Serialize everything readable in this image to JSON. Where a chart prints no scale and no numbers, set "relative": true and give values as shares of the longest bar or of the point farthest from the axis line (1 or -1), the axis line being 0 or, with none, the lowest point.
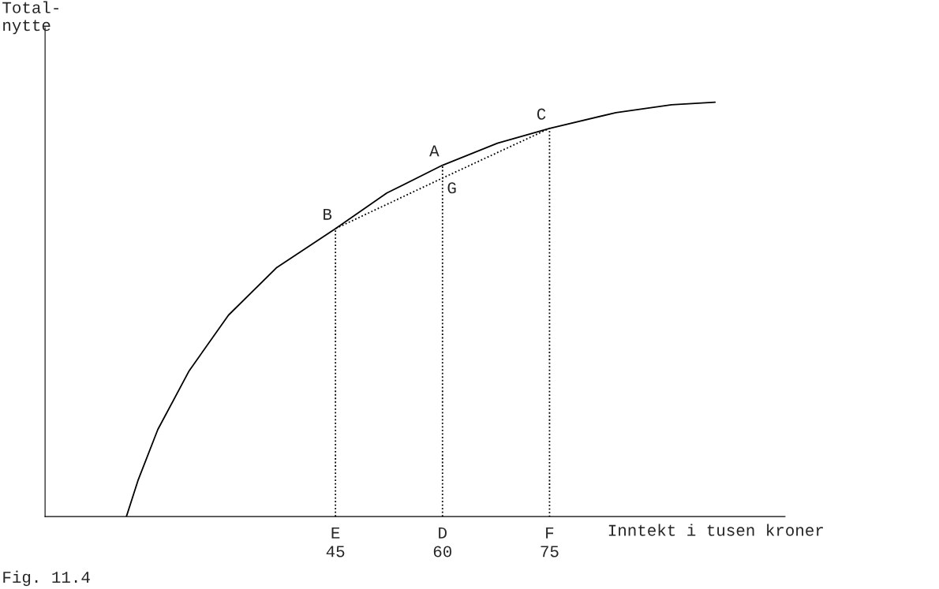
{
  "chart_data": {
    "type": "line",
    "relative": true,
    "xlabel": "Inntekt i tusen kroner",
    "ylabel": "Total-\nnytte",
    "xlim": [
      4.3,
      108
    ],
    "xticks": [
      45,
      60,
      75
    ],
    "series": [
      {
        "color": "#000000",
        "line_style": "solid",
        "x": [
          15.7,
          17.3,
          20.1,
          24.5,
          30.0,
          36.7,
          45,
          52.2,
          60,
          67.7,
          75,
          84.3,
          92.1,
          98.2
        ],
        "values": [
          0,
          0.086,
          0.21,
          0.352,
          0.486,
          0.6,
          0.695,
          0.781,
          0.848,
          0.901,
          0.937,
          0.975,
          0.994,
          1
        ]
      },
      {
        "color": "#000000",
        "line_style": "dotted",
        "x": [
          45,
          45,
          60,
          60
        ],
        "values": [
          0,
          0.695,
          0.817,
          0.848
        ]
      },
      {
        "color": "#000000",
        "line_style": "dotted",
        "x": [
          60,
          60,
          75,
          75
        ],
        "values": [
          0,
          0.817,
          0.937,
          0
        ]
      }
    ],
    "annotations": [
      {
        "text": "A",
        "x": 60,
        "y": 0.848
      },
      {
        "text": "B",
        "x": 45,
        "y": 0.695
      },
      {
        "text": "C",
        "x": 75,
        "y": 0.937
      },
      {
        "text": "G",
        "x": 60,
        "y": 0.817
      },
      "E",
      "D",
      "F",
      "Fig. 11.4"
    ],
    "grid": false,
    "legend": false
  }
}
